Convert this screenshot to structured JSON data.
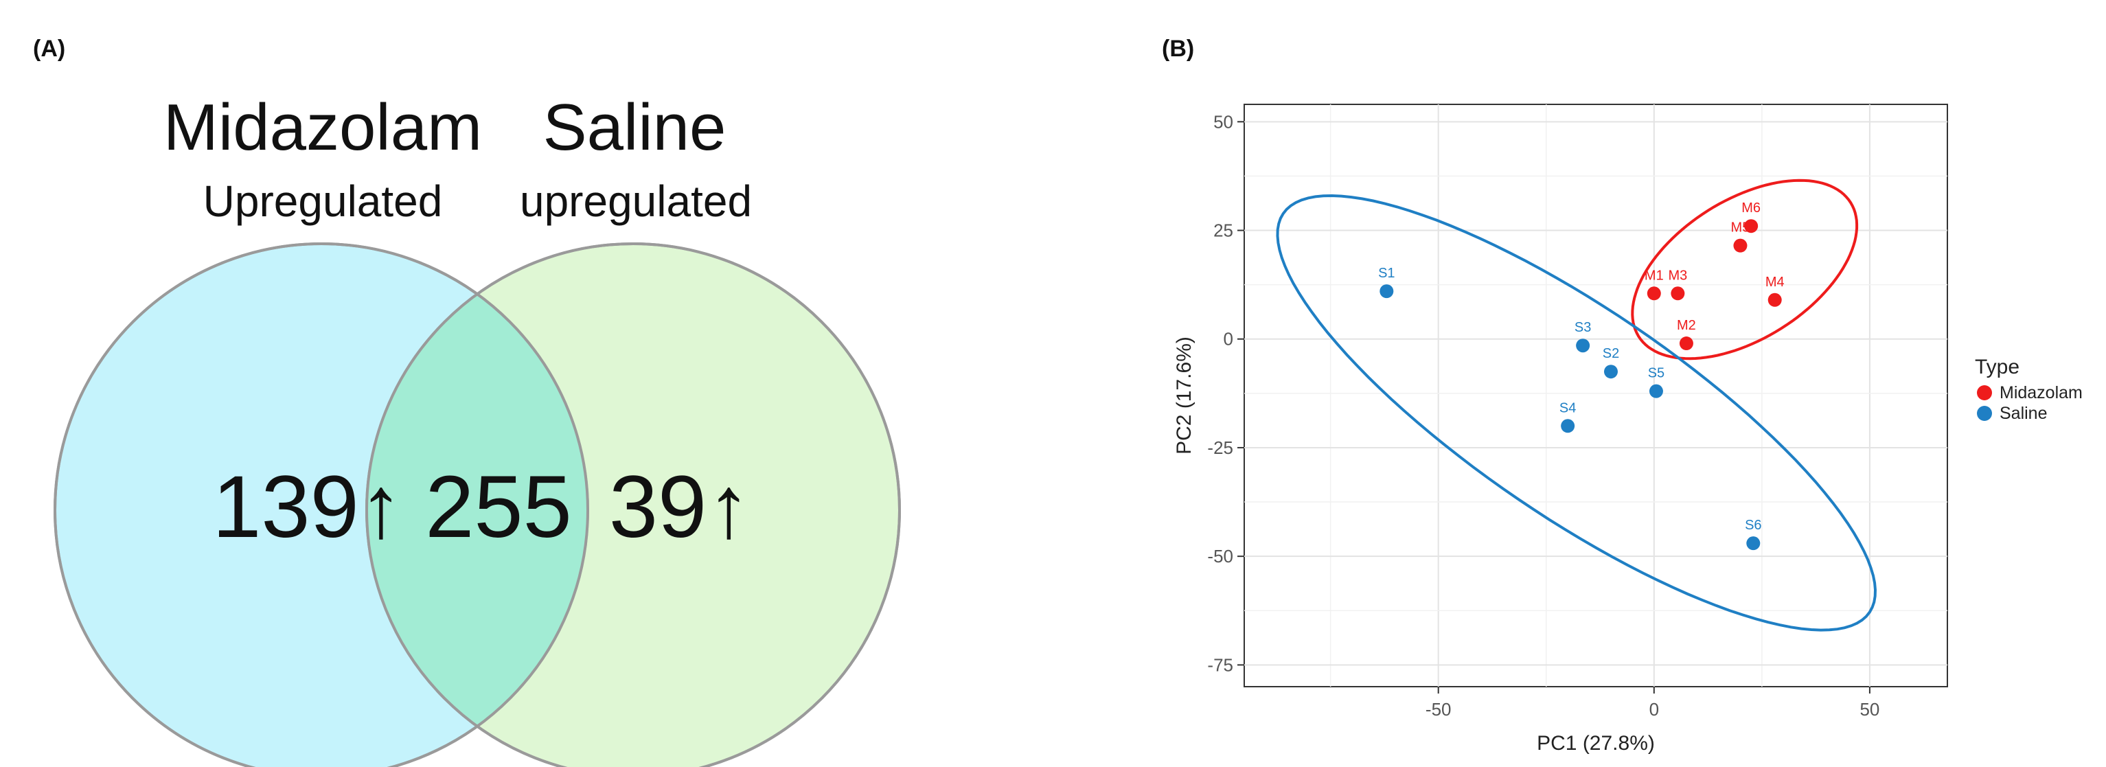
{
  "panels": {
    "a_label": "(A)",
    "b_label": "(B)"
  },
  "chart_data": [
    {
      "type": "venn",
      "sets": [
        {
          "title": "Midazolam",
          "subtitle": "Upregulated",
          "only_value": "139",
          "color": "#c5f3fc"
        },
        {
          "title": "Saline",
          "subtitle": "upregulated",
          "only_value": "39",
          "color": "#c9f2b8"
        }
      ],
      "intersection": "255",
      "intersection_color": "#a2ecd4",
      "arrow_glyph": "↑"
    },
    {
      "type": "scatter",
      "xlabel": "PC1 (27.8%)",
      "ylabel": "PC2 (17.6%)",
      "xlim": [
        -95,
        68
      ],
      "ylim": [
        -80,
        54
      ],
      "xticks": [
        -50,
        0,
        50
      ],
      "yticks": [
        50,
        25,
        0,
        -25,
        -50,
        -75
      ],
      "grid": true,
      "legend": {
        "title": "Type",
        "placement": "right"
      },
      "series": [
        {
          "name": "Midazolam",
          "color": "#ee1c1c",
          "points": [
            {
              "label": "M1",
              "x": 0,
              "y": 10.5
            },
            {
              "label": "M2",
              "x": 7.5,
              "y": -1
            },
            {
              "label": "M3",
              "x": 5.5,
              "y": 10.5
            },
            {
              "label": "M4",
              "x": 28,
              "y": 9
            },
            {
              "label": "M5",
              "x": 20,
              "y": 21.5
            },
            {
              "label": "M6",
              "x": 22.5,
              "y": 26
            }
          ],
          "ellipse": {
            "cx": 21,
            "cy": 16,
            "rx": 29,
            "ry": 16,
            "angle_deg": 32
          }
        },
        {
          "name": "Saline",
          "color": "#1f7fc4",
          "points": [
            {
              "label": "S1",
              "x": -62,
              "y": 11
            },
            {
              "label": "S2",
              "x": -10,
              "y": -7.5
            },
            {
              "label": "S3",
              "x": -16.5,
              "y": -1.5
            },
            {
              "label": "S4",
              "x": -20,
              "y": -20
            },
            {
              "label": "S5",
              "x": 0.5,
              "y": -12
            },
            {
              "label": "S6",
              "x": 23,
              "y": -47
            }
          ],
          "ellipse": {
            "cx": -18,
            "cy": -17,
            "rx": 82,
            "ry": 24,
            "angle_deg": -34
          }
        }
      ]
    }
  ]
}
